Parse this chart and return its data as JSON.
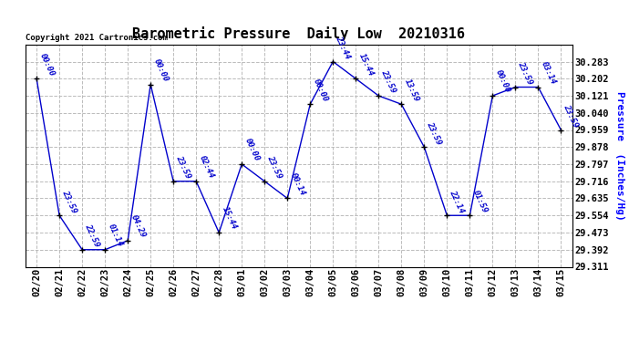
{
  "title": "Barometric Pressure  Daily Low  20210316",
  "ylabel": "Pressure  (Inches/Hg)",
  "copyright_text": "Copyright 2021 Cartronics.com",
  "background_color": "#ffffff",
  "line_color": "#0000cc",
  "grid_color": "#bbbbbb",
  "dates": [
    "02/20",
    "02/21",
    "02/22",
    "02/23",
    "02/24",
    "02/25",
    "02/26",
    "02/27",
    "02/28",
    "03/01",
    "03/02",
    "03/03",
    "03/04",
    "03/05",
    "03/06",
    "03/07",
    "03/08",
    "03/09",
    "03/10",
    "03/11",
    "03/12",
    "03/13",
    "03/14",
    "03/15"
  ],
  "times": [
    "00:00",
    "23:59",
    "22:59",
    "01:14",
    "04:29",
    "00:00",
    "23:59",
    "02:44",
    "15:44",
    "00:00",
    "23:59",
    "00:14",
    "00:00",
    "23:44",
    "15:44",
    "23:59",
    "13:59",
    "23:59",
    "22:14",
    "01:59",
    "00:00",
    "23:59",
    "03:14",
    "23:59"
  ],
  "values": [
    30.202,
    29.554,
    29.392,
    29.392,
    29.435,
    30.175,
    29.716,
    29.716,
    29.473,
    29.797,
    29.716,
    29.635,
    30.081,
    30.283,
    30.202,
    30.121,
    30.081,
    29.878,
    29.554,
    29.554,
    30.121,
    30.162,
    30.162,
    29.959
  ],
  "ylim_min": 29.311,
  "ylim_max": 30.364,
  "ytick_values": [
    29.311,
    29.392,
    29.473,
    29.554,
    29.635,
    29.716,
    29.797,
    29.878,
    29.959,
    30.04,
    30.121,
    30.202,
    30.283
  ],
  "title_fontsize": 11,
  "label_fontsize": 8,
  "tick_fontsize": 7.5,
  "annotation_fontsize": 6.5
}
